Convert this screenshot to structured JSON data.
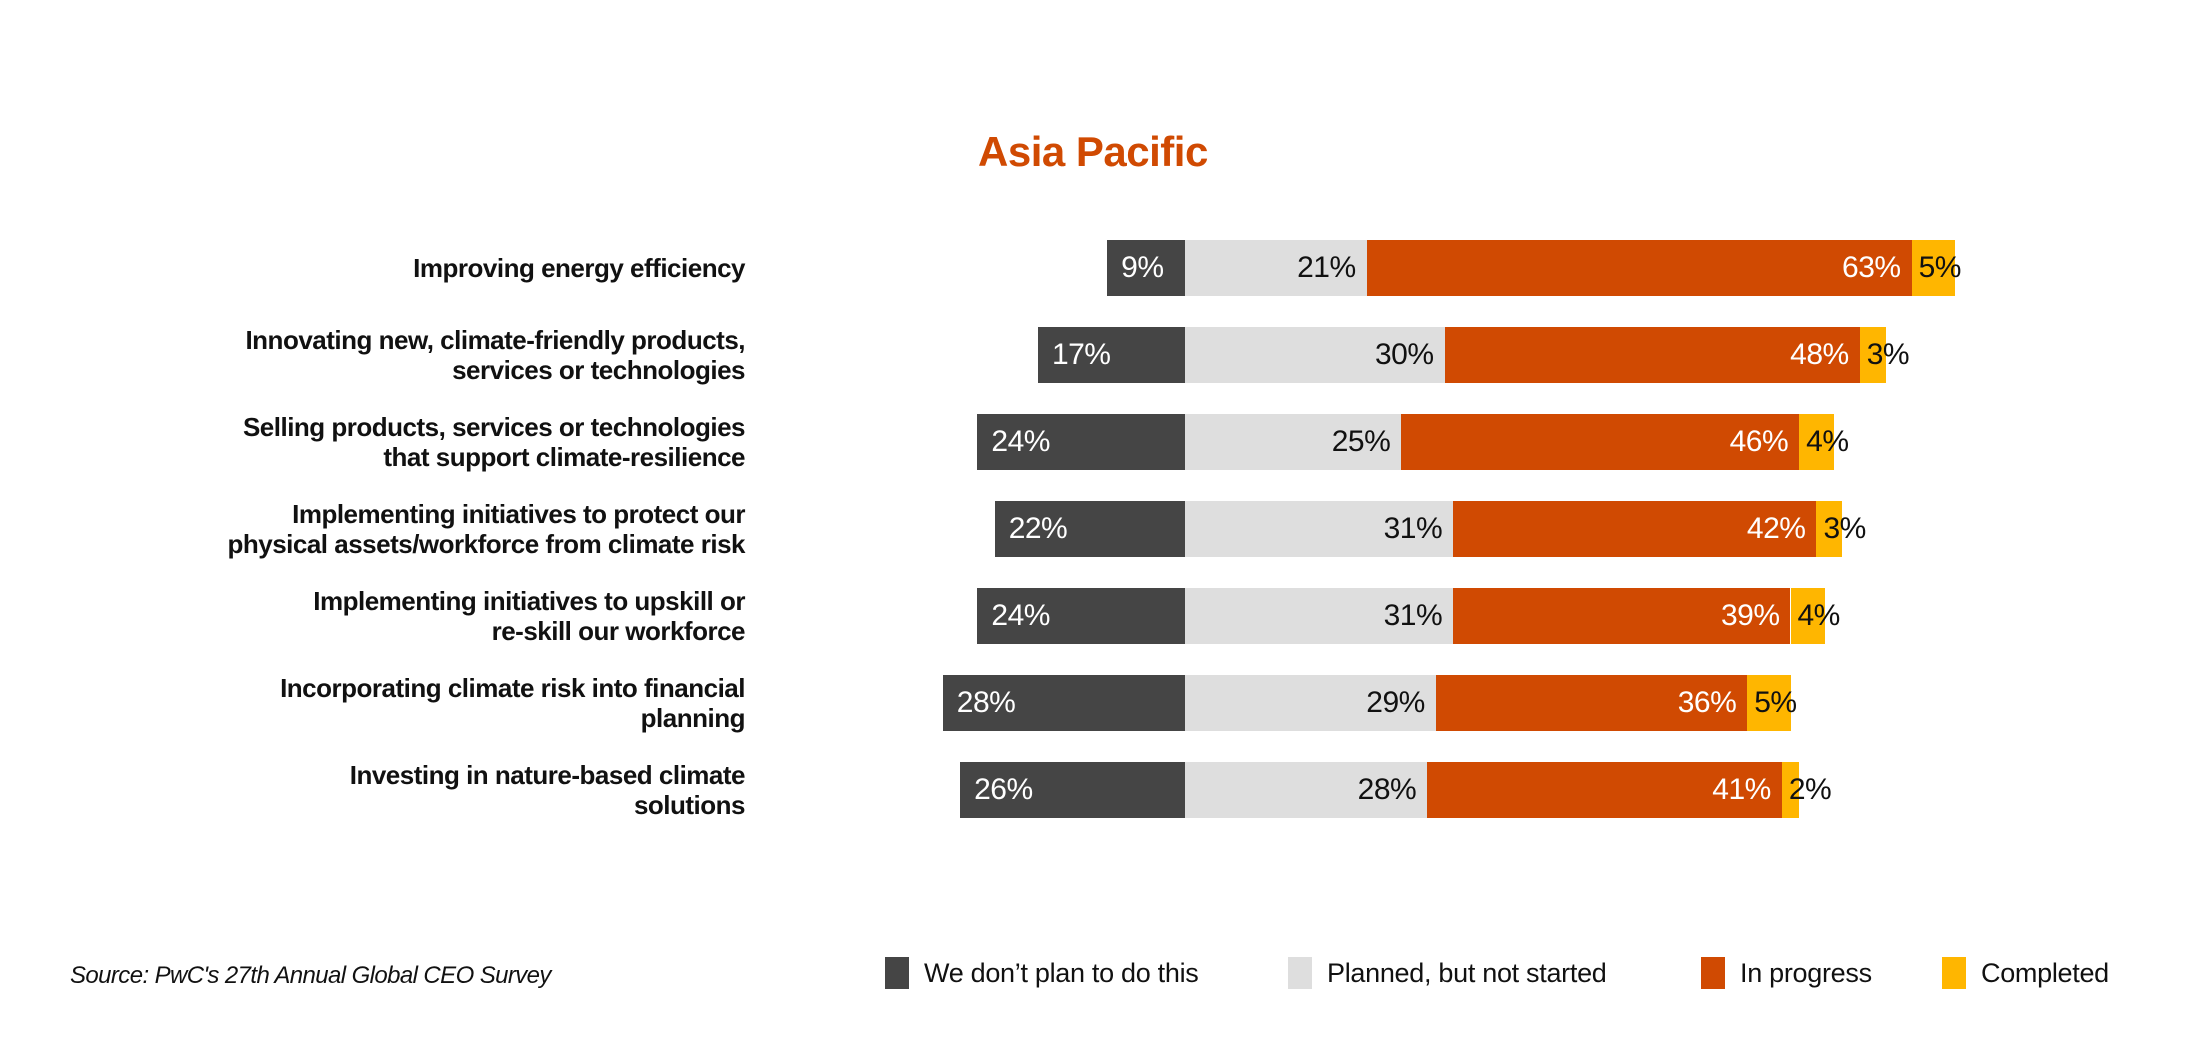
{
  "title": {
    "text": "Asia Pacific",
    "color": "#D04A02"
  },
  "source": {
    "text": "Source: PwC's 27th Annual Global CEO Survey"
  },
  "colors": {
    "dont_plan": "#454545",
    "planned": "#DEDEDE",
    "in_progress": "#D04A02",
    "completed": "#FFB600",
    "title": "#D04A02",
    "label_on_dark": "#FFFFFF",
    "label_on_light": "#111111"
  },
  "legend": [
    {
      "label": "We don’t plan to do this",
      "color": "#454545"
    },
    {
      "label": "Planned, but not started",
      "color": "#DEDEDE"
    },
    {
      "label": "In progress",
      "color": "#D04A02"
    },
    {
      "label": "Completed",
      "color": "#FFB600"
    }
  ],
  "chart_data": {
    "type": "bar",
    "orientation": "horizontal-stacked-diverging",
    "title": "Asia Pacific",
    "unit": "%",
    "value_labels": "shown on every segment",
    "legend_position": "bottom",
    "axes": "none (aligned at boundary between first and second series)",
    "categories": [
      "Improving energy efficiency",
      "Innovating new, climate-friendly products, services or technologies",
      "Selling products, services or technologies that support climate-resilience",
      "Implementing initiatives to protect our physical assets/workforce from climate risk",
      "Implementing initiatives to upskill or re-skill our workforce",
      "Incorporating climate risk into financial planning",
      "Investing in nature-based climate solutions"
    ],
    "category_label_lines": [
      [
        "Improving energy efficiency"
      ],
      [
        "Innovating new, climate-friendly products,",
        "services or technologies"
      ],
      [
        "Selling products, services or technologies",
        "that support climate-resilience"
      ],
      [
        "Implementing initiatives to protect our",
        "physical assets/workforce from climate risk"
      ],
      [
        "Implementing initiatives to upskill or",
        "re-skill our workforce"
      ],
      [
        "Incorporating climate risk into financial",
        "planning"
      ],
      [
        "Investing in nature-based climate",
        "solutions"
      ]
    ],
    "series": [
      {
        "name": "We don’t plan to do this",
        "color": "#454545",
        "values": [
          9,
          17,
          24,
          22,
          24,
          28,
          26
        ]
      },
      {
        "name": "Planned, but not started",
        "color": "#DEDEDE",
        "values": [
          21,
          30,
          25,
          31,
          31,
          29,
          28
        ]
      },
      {
        "name": "In progress",
        "color": "#D04A02",
        "values": [
          63,
          48,
          46,
          42,
          39,
          36,
          41
        ]
      },
      {
        "name": "Completed",
        "color": "#FFB600",
        "values": [
          5,
          3,
          4,
          3,
          4,
          5,
          2
        ]
      }
    ]
  }
}
